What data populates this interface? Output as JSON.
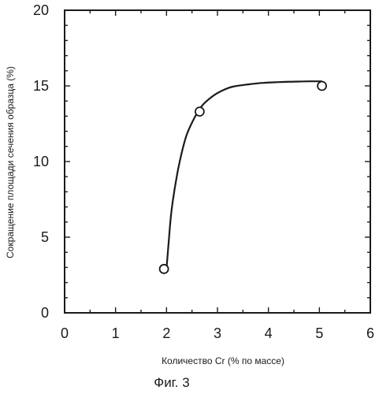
{
  "chart_data": {
    "type": "scatter",
    "caption": "Фиг. 3",
    "xlabel": "Количество Cr (% по массе)",
    "ylabel": "Сокращение площади сечения образца (%)",
    "xlim": [
      0,
      6
    ],
    "ylim": [
      0,
      20
    ],
    "x_ticks": [
      0,
      1,
      2,
      3,
      4,
      5,
      6
    ],
    "y_ticks": [
      0,
      5,
      10,
      15,
      20
    ],
    "grid": false,
    "legend": "none",
    "series": [
      {
        "marker": "open-circle",
        "points": [
          {
            "x": 1.95,
            "y": 2.9
          },
          {
            "x": 2.65,
            "y": 13.3
          },
          {
            "x": 5.05,
            "y": 15.0
          }
        ]
      }
    ],
    "fit_curve": {
      "x": [
        2.0,
        2.05,
        2.1,
        2.2,
        2.3,
        2.4,
        2.55,
        2.7,
        2.9,
        3.1,
        3.3,
        3.6,
        3.9,
        4.2,
        4.5,
        4.8,
        5.05
      ],
      "y": [
        2.9,
        5.0,
        6.8,
        9.0,
        10.6,
        11.8,
        12.9,
        13.7,
        14.3,
        14.7,
        14.95,
        15.1,
        15.2,
        15.25,
        15.28,
        15.3,
        15.3
      ]
    }
  }
}
